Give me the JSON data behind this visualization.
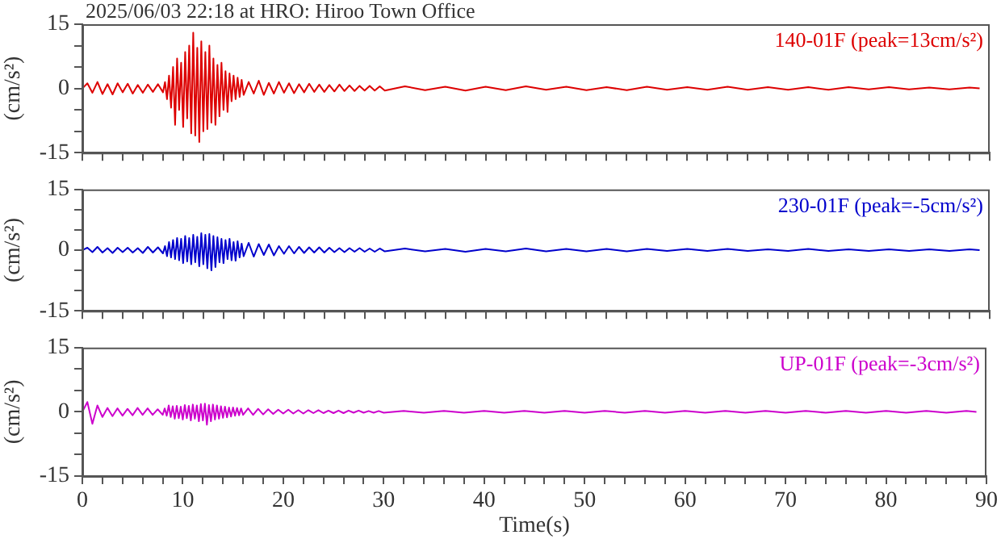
{
  "chart_data": [
    {
      "type": "line",
      "title": "2025/06/03 22:18 at HRO: Hiroo Town Office",
      "ylabel": "(cm/s²)",
      "tick_labels": "y",
      "x": [
        0,
        0.5,
        1,
        1.5,
        2,
        2.5,
        3,
        3.5,
        4,
        4.5,
        5,
        5.5,
        6,
        6.5,
        7,
        7.5,
        8,
        8.2,
        8.4,
        8.6,
        8.8,
        9,
        9.2,
        9.4,
        9.6,
        9.8,
        10,
        10.2,
        10.4,
        10.6,
        10.8,
        11,
        11.2,
        11.4,
        11.6,
        11.8,
        12,
        12.2,
        12.4,
        12.6,
        12.8,
        13,
        13.2,
        13.4,
        13.6,
        13.8,
        14,
        14.2,
        14.4,
        14.6,
        14.8,
        15,
        15.2,
        15.4,
        15.6,
        15.8,
        16,
        16.5,
        17,
        17.5,
        18,
        18.5,
        19,
        19.5,
        20,
        20.5,
        21,
        21.5,
        22,
        22.5,
        23,
        23.5,
        24,
        24.5,
        25,
        25.5,
        26,
        26.5,
        27,
        27.5,
        28,
        28.5,
        29,
        29.5,
        30,
        32,
        34,
        36,
        38,
        40,
        42,
        44,
        46,
        48,
        50,
        52,
        54,
        56,
        58,
        60,
        62,
        64,
        66,
        68,
        70,
        72,
        74,
        76,
        78,
        80,
        82,
        84,
        86,
        88,
        89
      ],
      "series": [
        {
          "name": "140-01F (peak=13cm/s²)",
          "color": "#dd0000",
          "values": [
            0,
            1.2,
            -1.0,
            1.5,
            -1.3,
            1.0,
            -1.4,
            1.2,
            -0.9,
            1.1,
            -1.2,
            0.8,
            -1.0,
            0.9,
            -0.8,
            1.0,
            -0.9,
            1.5,
            -2.5,
            3,
            -4.5,
            5,
            -8.5,
            7,
            -5,
            6,
            -9,
            8.5,
            -7,
            10,
            -10.5,
            13,
            -11,
            9.5,
            -12.5,
            11,
            -10,
            8.5,
            -9.5,
            10,
            -8,
            7,
            -8.5,
            5.5,
            -6.5,
            6,
            -5,
            4,
            -5.5,
            3.5,
            -3,
            3,
            -2.5,
            2.5,
            -2,
            2,
            -1.5,
            1.5,
            -1.2,
            1.8,
            -1.5,
            1.3,
            -1.2,
            1.5,
            -1.0,
            1.2,
            -1.1,
            1.0,
            -0.9,
            1.1,
            -0.8,
            0.9,
            -0.8,
            0.8,
            -0.7,
            0.9,
            -0.6,
            0.7,
            -0.6,
            0.6,
            -0.5,
            0.6,
            -0.5,
            0.5,
            -0.5,
            0.5,
            -0.4,
            0.4,
            -0.5,
            0.4,
            -0.4,
            0.5,
            -0.3,
            0.4,
            -0.4,
            0.3,
            -0.4,
            0.4,
            -0.3,
            0.3,
            -0.3,
            0.4,
            -0.3,
            0.3,
            -0.3,
            0.3,
            -0.3,
            0.3,
            -0.2,
            0.3,
            -0.2,
            0.2,
            -0.2,
            0.2,
            0
          ]
        }
      ],
      "xlim": [
        0,
        90
      ],
      "xticks": [
        0,
        {
          "value": 2,
          "label": null
        },
        {
          "value": 4,
          "label": null
        },
        {
          "value": 6,
          "label": null
        },
        {
          "value": 8,
          "label": null
        },
        10,
        {
          "value": 12,
          "label": null
        },
        {
          "value": 14,
          "label": null
        },
        {
          "value": 16,
          "label": null
        },
        {
          "value": 18,
          "label": null
        },
        20,
        {
          "value": 22,
          "label": null
        },
        {
          "value": 24,
          "label": null
        },
        {
          "value": 26,
          "label": null
        },
        {
          "value": 28,
          "label": null
        },
        30,
        {
          "value": 32,
          "label": null
        },
        {
          "value": 34,
          "label": null
        },
        {
          "value": 36,
          "label": null
        },
        {
          "value": 38,
          "label": null
        },
        40,
        {
          "value": 42,
          "label": null
        },
        {
          "value": 44,
          "label": null
        },
        {
          "value": 46,
          "label": null
        },
        {
          "value": 48,
          "label": null
        },
        50,
        {
          "value": 52,
          "label": null
        },
        {
          "value": 54,
          "label": null
        },
        {
          "value": 56,
          "label": null
        },
        {
          "value": 58,
          "label": null
        },
        60,
        {
          "value": 62,
          "label": null
        },
        {
          "value": 64,
          "label": null
        },
        {
          "value": 66,
          "label": null
        },
        {
          "value": 68,
          "label": null
        },
        70,
        {
          "value": 72,
          "label": null
        },
        {
          "value": 74,
          "label": null
        },
        {
          "value": 76,
          "label": null
        },
        {
          "value": 78,
          "label": null
        },
        80,
        {
          "value": 82,
          "label": null
        },
        {
          "value": 84,
          "label": null
        },
        {
          "value": 86,
          "label": null
        },
        {
          "value": 88,
          "label": null
        },
        90
      ],
      "ylim": [
        -15,
        15
      ],
      "yticks": [
        -15,
        {
          "value": -10,
          "label": null
        },
        {
          "value": -5,
          "label": null
        },
        0,
        {
          "value": 5,
          "label": null
        },
        {
          "value": 10,
          "label": null
        },
        15
      ]
    },
    {
      "type": "line",
      "ylabel": "(cm/s²)",
      "tick_labels": "y",
      "x": [
        0,
        0.5,
        1,
        1.5,
        2,
        2.5,
        3,
        3.5,
        4,
        4.5,
        5,
        5.5,
        6,
        6.5,
        7,
        7.5,
        8,
        8.2,
        8.4,
        8.6,
        8.8,
        9,
        9.2,
        9.4,
        9.6,
        9.8,
        10,
        10.2,
        10.4,
        10.6,
        10.8,
        11,
        11.2,
        11.4,
        11.6,
        11.8,
        12,
        12.2,
        12.4,
        12.6,
        12.8,
        13,
        13.2,
        13.4,
        13.6,
        13.8,
        14,
        14.2,
        14.4,
        14.6,
        14.8,
        15,
        15.2,
        15.4,
        15.6,
        15.8,
        16,
        16.5,
        17,
        17.5,
        18,
        18.5,
        19,
        19.5,
        20,
        20.5,
        21,
        21.5,
        22,
        22.5,
        23,
        23.5,
        24,
        24.5,
        25,
        25.5,
        26,
        26.5,
        27,
        27.5,
        28,
        28.5,
        29,
        29.5,
        30,
        32,
        34,
        36,
        38,
        40,
        42,
        44,
        46,
        48,
        50,
        52,
        54,
        56,
        58,
        60,
        62,
        64,
        66,
        68,
        70,
        72,
        74,
        76,
        78,
        80,
        82,
        84,
        86,
        88,
        89
      ],
      "series": [
        {
          "name": "230-01F (peak=-5cm/s²)",
          "color": "#0000cc",
          "values": [
            0,
            0.6,
            -0.5,
            0.8,
            -0.6,
            0.5,
            -0.7,
            0.6,
            -0.5,
            0.6,
            -0.6,
            0.5,
            -0.7,
            0.8,
            -0.6,
            0.7,
            -0.8,
            1.0,
            -1.5,
            2.0,
            -1.8,
            2.5,
            -2.2,
            3.0,
            -2.5,
            2.8,
            -3.2,
            3.5,
            -2.8,
            3.0,
            -3.5,
            3.8,
            -3.0,
            3.3,
            -4.0,
            4.2,
            -3.5,
            3.8,
            -4.5,
            4.0,
            -5,
            3.5,
            -4.2,
            3.2,
            -3.0,
            2.8,
            -3.2,
            2.5,
            -2.2,
            2.8,
            -2.5,
            2.0,
            -2.6,
            2.2,
            -1.8,
            1.6,
            -1.5,
            1.8,
            -1.6,
            1.5,
            -1.2,
            1.4,
            -1.3,
            1.0,
            -0.9,
            1.0,
            -0.8,
            0.8,
            -0.7,
            0.7,
            -0.6,
            0.7,
            -0.6,
            0.6,
            -0.5,
            0.5,
            -0.5,
            0.5,
            -0.4,
            0.5,
            -0.4,
            0.4,
            -0.4,
            0.4,
            -0.3,
            0.4,
            -0.3,
            0.3,
            -0.4,
            0.3,
            -0.3,
            0.4,
            -0.3,
            0.3,
            -0.3,
            0.3,
            -0.3,
            0.3,
            -0.2,
            0.3,
            -0.2,
            0.3,
            -0.2,
            0.2,
            -0.2,
            0.3,
            -0.2,
            0.2,
            -0.2,
            0.2,
            -0.2,
            0.2,
            -0.2,
            0.2,
            0
          ]
        }
      ],
      "xlim": [
        0,
        90
      ],
      "xticks": [
        0,
        {
          "value": 2,
          "label": null
        },
        {
          "value": 4,
          "label": null
        },
        {
          "value": 6,
          "label": null
        },
        {
          "value": 8,
          "label": null
        },
        10,
        {
          "value": 12,
          "label": null
        },
        {
          "value": 14,
          "label": null
        },
        {
          "value": 16,
          "label": null
        },
        {
          "value": 18,
          "label": null
        },
        20,
        {
          "value": 22,
          "label": null
        },
        {
          "value": 24,
          "label": null
        },
        {
          "value": 26,
          "label": null
        },
        {
          "value": 28,
          "label": null
        },
        30,
        {
          "value": 32,
          "label": null
        },
        {
          "value": 34,
          "label": null
        },
        {
          "value": 36,
          "label": null
        },
        {
          "value": 38,
          "label": null
        },
        40,
        {
          "value": 42,
          "label": null
        },
        {
          "value": 44,
          "label": null
        },
        {
          "value": 46,
          "label": null
        },
        {
          "value": 48,
          "label": null
        },
        50,
        {
          "value": 52,
          "label": null
        },
        {
          "value": 54,
          "label": null
        },
        {
          "value": 56,
          "label": null
        },
        {
          "value": 58,
          "label": null
        },
        60,
        {
          "value": 62,
          "label": null
        },
        {
          "value": 64,
          "label": null
        },
        {
          "value": 66,
          "label": null
        },
        {
          "value": 68,
          "label": null
        },
        70,
        {
          "value": 72,
          "label": null
        },
        {
          "value": 74,
          "label": null
        },
        {
          "value": 76,
          "label": null
        },
        {
          "value": 78,
          "label": null
        },
        80,
        {
          "value": 82,
          "label": null
        },
        {
          "value": 84,
          "label": null
        },
        {
          "value": 86,
          "label": null
        },
        {
          "value": 88,
          "label": null
        },
        90
      ],
      "ylim": [
        -15,
        15
      ],
      "yticks": [
        -15,
        {
          "value": -10,
          "label": null
        },
        {
          "value": -5,
          "label": null
        },
        0,
        {
          "value": 5,
          "label": null
        },
        {
          "value": 10,
          "label": null
        },
        15
      ]
    },
    {
      "type": "line",
      "xlabel": "Time(s)",
      "ylabel": "(cm/s²)",
      "x": [
        0,
        0.5,
        1,
        1.5,
        2,
        2.5,
        3,
        3.5,
        4,
        4.5,
        5,
        5.5,
        6,
        6.5,
        7,
        7.5,
        8,
        8.2,
        8.4,
        8.6,
        8.8,
        9,
        9.2,
        9.4,
        9.6,
        9.8,
        10,
        10.2,
        10.4,
        10.6,
        10.8,
        11,
        11.2,
        11.4,
        11.6,
        11.8,
        12,
        12.2,
        12.4,
        12.6,
        12.8,
        13,
        13.2,
        13.4,
        13.6,
        13.8,
        14,
        14.2,
        14.4,
        14.6,
        14.8,
        15,
        15.2,
        15.4,
        15.6,
        15.8,
        16,
        16.5,
        17,
        17.5,
        18,
        18.5,
        19,
        19.5,
        20,
        20.5,
        21,
        21.5,
        22,
        22.5,
        23,
        23.5,
        24,
        24.5,
        25,
        25.5,
        26,
        26.5,
        27,
        27.5,
        28,
        28.5,
        29,
        29.5,
        30,
        32,
        34,
        36,
        38,
        40,
        42,
        44,
        46,
        48,
        50,
        52,
        54,
        56,
        58,
        60,
        62,
        64,
        66,
        68,
        70,
        72,
        74,
        76,
        78,
        80,
        82,
        84,
        86,
        88,
        89
      ],
      "series": [
        {
          "name": "UP-01F (peak=-3cm/s²)",
          "color": "#cc00cc",
          "values": [
            0,
            2.3,
            -2.8,
            1.5,
            -1.2,
            0.9,
            -1.0,
            0.8,
            -0.9,
            0.7,
            -0.8,
            0.9,
            -0.7,
            0.8,
            -0.7,
            0.6,
            -0.7,
            0.8,
            -0.9,
            1.5,
            -1.2,
            1.3,
            -1.6,
            1.4,
            -1.5,
            1.2,
            -1.8,
            1.6,
            -1.5,
            1.4,
            -2.0,
            1.7,
            -1.6,
            1.5,
            -2.2,
            1.8,
            -2.0,
            1.9,
            -3.0,
            1.6,
            -2.2,
            1.7,
            -1.8,
            1.5,
            -1.6,
            1.3,
            -1.4,
            1.2,
            -1.3,
            1.0,
            -1.1,
            1.0,
            -0.9,
            0.9,
            -0.8,
            0.8,
            -0.7,
            0.8,
            -0.7,
            0.7,
            -0.6,
            0.6,
            -0.5,
            0.5,
            -0.4,
            0.5,
            -0.4,
            0.4,
            -0.4,
            0.4,
            -0.3,
            0.4,
            -0.3,
            0.3,
            -0.3,
            0.3,
            -0.3,
            0.3,
            -0.2,
            0.3,
            -0.2,
            0.2,
            -0.2,
            0.2,
            -0.2,
            0.2,
            -0.2,
            0.2,
            -0.2,
            0.2,
            -0.2,
            0.2,
            -0.2,
            0.2,
            -0.2,
            0.2,
            -0.2,
            0.2,
            -0.2,
            0.2,
            -0.2,
            0.2,
            -0.2,
            0.2,
            -0.2,
            0.2,
            -0.2,
            0.2,
            -0.2,
            0.2,
            -0.2,
            0.2,
            -0.2,
            0.2,
            0
          ]
        }
      ],
      "xlim": [
        0,
        90
      ],
      "xticks": [
        0,
        {
          "value": 2,
          "label": null
        },
        {
          "value": 4,
          "label": null
        },
        {
          "value": 6,
          "label": null
        },
        {
          "value": 8,
          "label": null
        },
        10,
        {
          "value": 12,
          "label": null
        },
        {
          "value": 14,
          "label": null
        },
        {
          "value": 16,
          "label": null
        },
        {
          "value": 18,
          "label": null
        },
        20,
        {
          "value": 22,
          "label": null
        },
        {
          "value": 24,
          "label": null
        },
        {
          "value": 26,
          "label": null
        },
        {
          "value": 28,
          "label": null
        },
        30,
        {
          "value": 32,
          "label": null
        },
        {
          "value": 34,
          "label": null
        },
        {
          "value": 36,
          "label": null
        },
        {
          "value": 38,
          "label": null
        },
        40,
        {
          "value": 42,
          "label": null
        },
        {
          "value": 44,
          "label": null
        },
        {
          "value": 46,
          "label": null
        },
        {
          "value": 48,
          "label": null
        },
        50,
        {
          "value": 52,
          "label": null
        },
        {
          "value": 54,
          "label": null
        },
        {
          "value": 56,
          "label": null
        },
        {
          "value": 58,
          "label": null
        },
        60,
        {
          "value": 62,
          "label": null
        },
        {
          "value": 64,
          "label": null
        },
        {
          "value": 66,
          "label": null
        },
        {
          "value": 68,
          "label": null
        },
        70,
        {
          "value": 72,
          "label": null
        },
        {
          "value": 74,
          "label": null
        },
        {
          "value": 76,
          "label": null
        },
        {
          "value": 78,
          "label": null
        },
        80,
        {
          "value": 82,
          "label": null
        },
        {
          "value": 84,
          "label": null
        },
        {
          "value": 86,
          "label": null
        },
        {
          "value": 88,
          "label": null
        },
        90
      ],
      "ylim": [
        -15,
        15
      ],
      "yticks": [
        -15,
        {
          "value": -10,
          "label": null
        },
        {
          "value": -5,
          "label": null
        },
        0,
        {
          "value": 5,
          "label": null
        },
        {
          "value": 10,
          "label": null
        },
        15
      ]
    }
  ]
}
